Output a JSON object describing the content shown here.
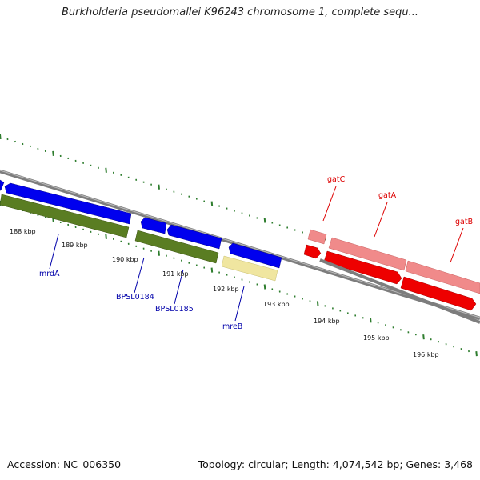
{
  "title": "Burkholderia pseudomallei K96243 chromosome 1, complete sequ...",
  "footer": {
    "accession": "Accession: NC_006350",
    "topology": "Topology: circular; Length: 4,074,542 bp; Genes: 3,468"
  },
  "colors": {
    "backbone": "#7d7d7d",
    "tick": "#2e7d2e",
    "gene_blue": "#0000ee",
    "gene_green": "#5a7d22",
    "gene_yellow": "#f0e6a0",
    "gene_pink": "#f08a8a",
    "gene_red": "#ee0000",
    "label_blue": "#0000aa",
    "label_red": "#dd0000"
  },
  "scale": {
    "labels": [
      "188 kbp",
      "189 kbp",
      "190 kbp",
      "191 kbp",
      "192 kbp",
      "193 kbp",
      "194 kbp",
      "195 kbp",
      "196 kbp"
    ]
  },
  "gene_labels": [
    "mrdA",
    "BPSL0184",
    "BPSL0185",
    "mreB",
    "gatC",
    "gatA",
    "gatB"
  ]
}
